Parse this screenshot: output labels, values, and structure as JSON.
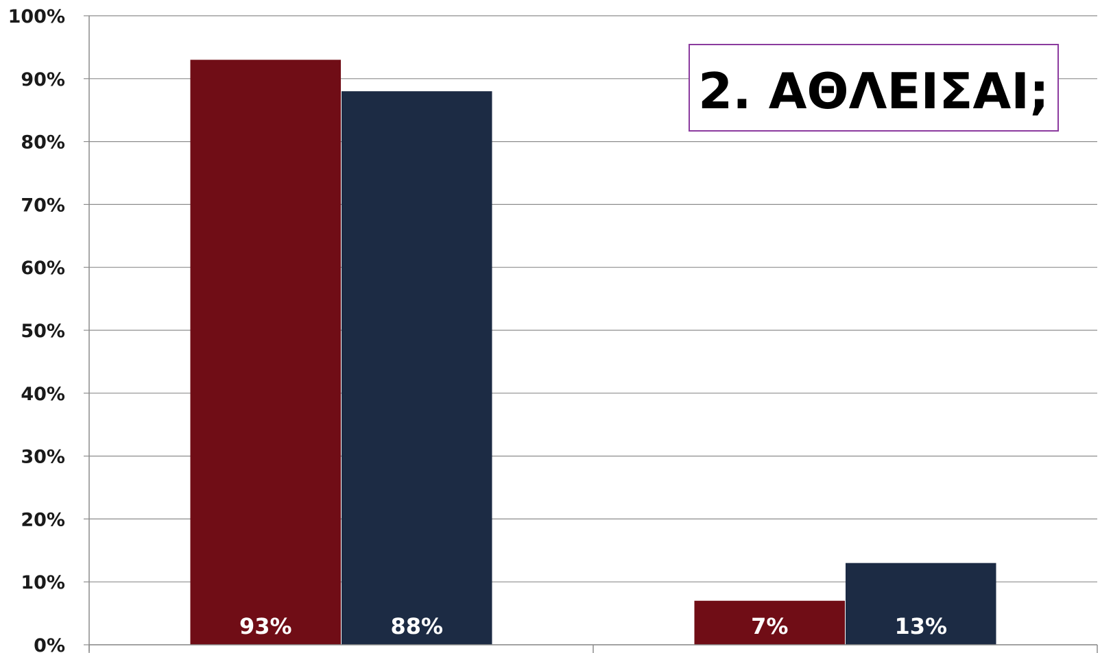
{
  "chart_data": {
    "type": "bar",
    "title": "2. ΑΘΛΕΙΣΑΙ;",
    "categories": [
      "",
      ""
    ],
    "series": [
      {
        "values": [
          93,
          7
        ],
        "labels": [
          "93%",
          "7%"
        ],
        "color": "#700d16"
      },
      {
        "values": [
          88,
          13
        ],
        "labels": [
          "88%",
          "13%"
        ],
        "color": "#1c2b44"
      }
    ],
    "ylim": [
      0,
      100
    ],
    "yticks": [
      "0%",
      "10%",
      "20%",
      "30%",
      "40%",
      "50%",
      "60%",
      "70%",
      "80%",
      "90%",
      "100%"
    ],
    "grid": true,
    "legend": "none",
    "colors": {
      "grid": "#8c8c8c",
      "title_border": "#8b3a9e"
    }
  }
}
